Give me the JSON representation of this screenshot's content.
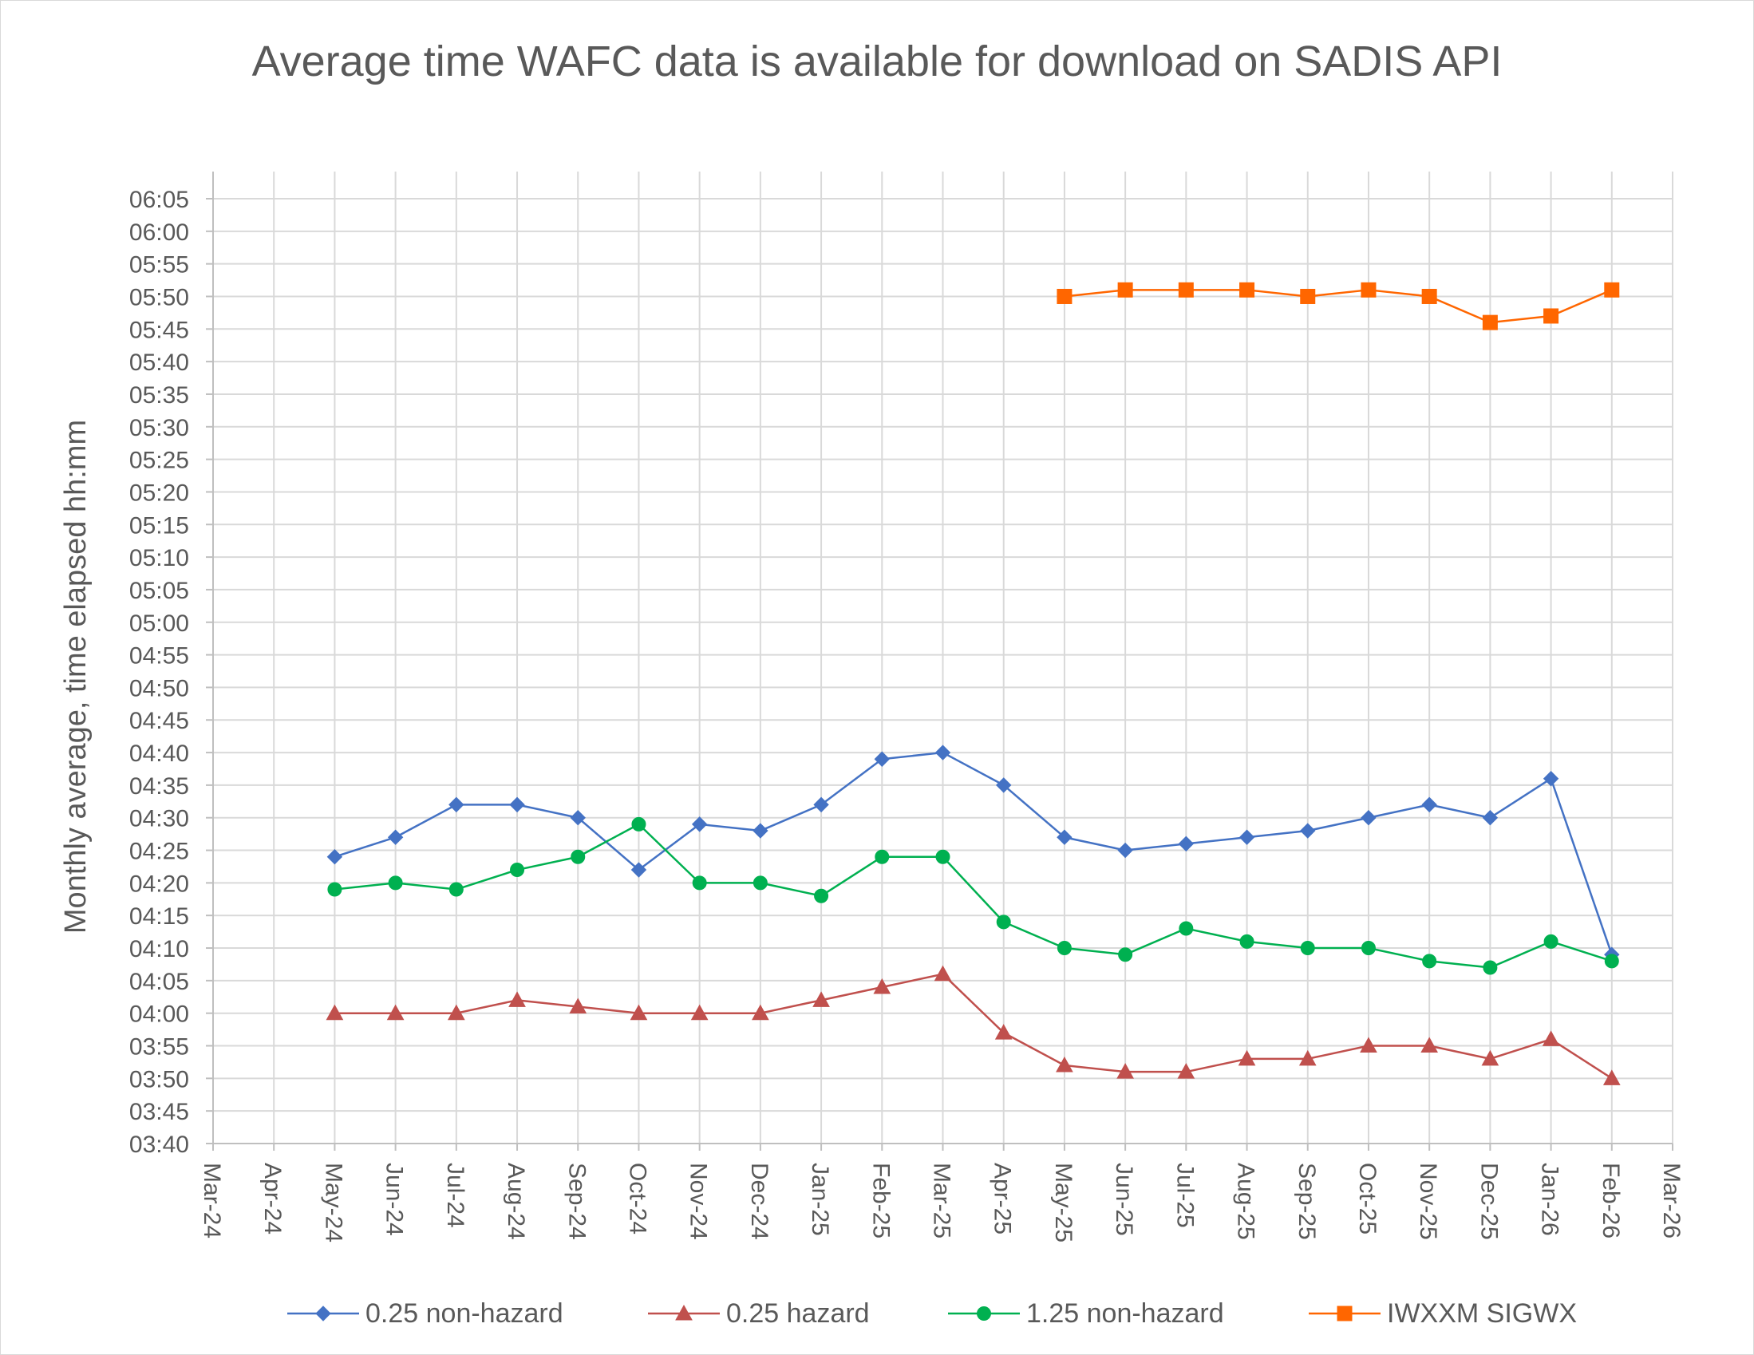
{
  "chart_data": {
    "type": "line",
    "title": "Average time WAFC data is available for download on SADIS API",
    "xlabel": "",
    "ylabel": "Monthly average, time elapsed  hh:mm",
    "x_tick_labels": [
      "Mar-24",
      "Apr-24",
      "May-24",
      "Jun-24",
      "Jul-24",
      "Aug-24",
      "Sep-24",
      "Oct-24",
      "Nov-24",
      "Dec-24",
      "Jan-25",
      "Feb-25",
      "Mar-25",
      "Apr-25",
      "May-25",
      "Jun-25",
      "Jul-25",
      "Aug-25",
      "Sep-25",
      "Oct-25",
      "Nov-25",
      "Dec-25",
      "Jan-26",
      "Feb-26",
      "Mar-26"
    ],
    "y_tick_labels": [
      "03:40",
      "03:45",
      "03:50",
      "03:55",
      "04:00",
      "04:05",
      "04:10",
      "04:15",
      "04:20",
      "04:25",
      "04:30",
      "04:35",
      "04:40",
      "04:45",
      "04:50",
      "04:55",
      "05:00",
      "05:05",
      "05:10",
      "05:15",
      "05:20",
      "05:25",
      "05:30",
      "05:35",
      "05:40",
      "05:45",
      "05:50",
      "05:55",
      "06:00",
      "06:05"
    ],
    "ylim_minutes": [
      220,
      370
    ],
    "y_tick_step_minutes": 5,
    "grid": true,
    "legend_position": "bottom",
    "series": [
      {
        "name": "0.25 non-hazard",
        "color": "#4472C4",
        "marker": "diamond",
        "x": [
          "May-24",
          "Jun-24",
          "Jul-24",
          "Aug-24",
          "Sep-24",
          "Oct-24",
          "Nov-24",
          "Dec-24",
          "Jan-25",
          "Feb-25",
          "Mar-25",
          "Apr-25",
          "May-25",
          "Jun-25",
          "Jul-25",
          "Aug-25",
          "Sep-25",
          "Oct-25",
          "Nov-25",
          "Dec-25",
          "Jan-26",
          "Feb-26"
        ],
        "values_minutes": [
          264,
          267,
          272,
          272,
          270,
          262,
          269,
          268,
          272,
          279,
          280,
          275,
          267,
          265,
          266,
          267,
          268,
          270,
          272,
          270,
          276,
          249
        ]
      },
      {
        "name": "0.25 hazard",
        "color": "#C0504D",
        "marker": "triangle",
        "x": [
          "May-24",
          "Jun-24",
          "Jul-24",
          "Aug-24",
          "Sep-24",
          "Oct-24",
          "Nov-24",
          "Dec-24",
          "Jan-25",
          "Feb-25",
          "Mar-25",
          "Apr-25",
          "May-25",
          "Jun-25",
          "Jul-25",
          "Aug-25",
          "Sep-25",
          "Oct-25",
          "Nov-25",
          "Dec-25",
          "Jan-26",
          "Feb-26"
        ],
        "values_minutes": [
          240,
          240,
          240,
          242,
          241,
          240,
          240,
          240,
          242,
          244,
          246,
          237,
          232,
          231,
          231,
          233,
          233,
          235,
          235,
          233,
          236,
          230
        ]
      },
      {
        "name": "1.25 non-hazard",
        "color": "#00B050",
        "marker": "circle",
        "x": [
          "May-24",
          "Jun-24",
          "Jul-24",
          "Aug-24",
          "Sep-24",
          "Oct-24",
          "Nov-24",
          "Dec-24",
          "Jan-25",
          "Feb-25",
          "Mar-25",
          "Apr-25",
          "May-25",
          "Jun-25",
          "Jul-25",
          "Aug-25",
          "Sep-25",
          "Oct-25",
          "Nov-25",
          "Dec-25",
          "Jan-26",
          "Feb-26"
        ],
        "values_minutes": [
          259,
          260,
          259,
          262,
          264,
          269,
          260,
          260,
          258,
          264,
          264,
          254,
          250,
          249,
          253,
          251,
          250,
          250,
          248,
          247,
          251,
          248
        ]
      },
      {
        "name": "IWXXM SIGWX",
        "color": "#FF6600",
        "marker": "square",
        "x": [
          "May-25",
          "Jun-25",
          "Jul-25",
          "Aug-25",
          "Sep-25",
          "Oct-25",
          "Nov-25",
          "Dec-25",
          "Jan-26",
          "Feb-26"
        ],
        "values_minutes": [
          350,
          351,
          351,
          351,
          350,
          351,
          350,
          346,
          347,
          351
        ]
      }
    ]
  }
}
